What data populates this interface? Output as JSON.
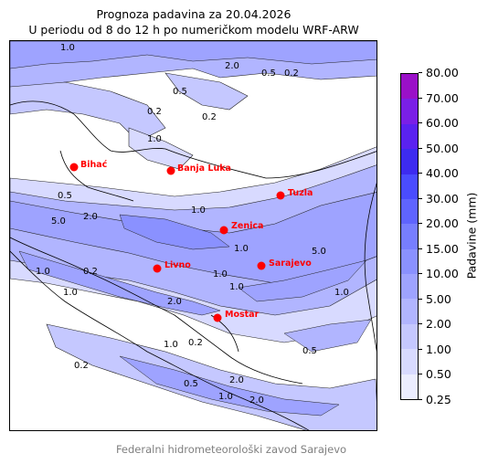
{
  "title_line1": "Prognoza padavina za 20.04.2026",
  "title_line2": "U periodu od 8 do 12 h po numeričkom modelu WRF-ARW",
  "footer": "Federalni hidrometeorološki zavod Sarajevo",
  "colorbar": {
    "label": "Padavine (mm)",
    "levels": [
      "0.25",
      "0.50",
      "1.00",
      "2.00",
      "5.00",
      "10.00",
      "15.00",
      "20.00",
      "30.00",
      "40.00",
      "50.00",
      "60.00",
      "70.00",
      "80.00"
    ],
    "colors": [
      "#ecedff",
      "#d8daff",
      "#c5c8ff",
      "#b1b5ff",
      "#9ea3ff",
      "#8a91ff",
      "#777eff",
      "#5f64ff",
      "#4a4cff",
      "#3d2bf0",
      "#5a22f0",
      "#7a1fe6",
      "#9a10c8"
    ]
  },
  "cities": [
    {
      "name": "Bihać"
    },
    {
      "name": "Banja Luka"
    },
    {
      "name": "Tuzla"
    },
    {
      "name": "Zenica"
    },
    {
      "name": "Livno"
    },
    {
      "name": "Sarajevo"
    },
    {
      "name": "Mostar"
    }
  ],
  "contour_labels": [
    "1.0",
    "2.0",
    "0.5",
    "0.2",
    "5.0"
  ]
}
